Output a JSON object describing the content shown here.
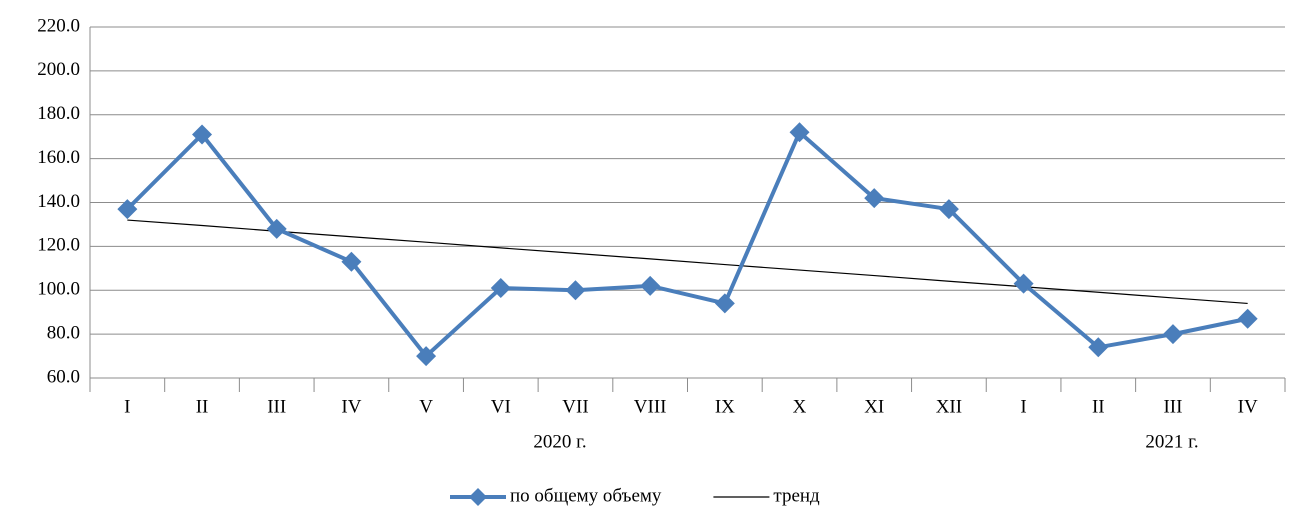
{
  "chart_data": {
    "type": "line",
    "categories": [
      "I",
      "II",
      "III",
      "IV",
      "V",
      "VI",
      "VII",
      "VIII",
      "IX",
      "X",
      "XI",
      "XII",
      "I",
      "II",
      "III",
      "IV"
    ],
    "x_groups": [
      "2020 г.",
      "2021 г."
    ],
    "series": [
      {
        "name": "по общему объему",
        "color": "#4a7ebb",
        "marker": "diamond",
        "values": [
          137,
          171,
          128,
          113,
          70,
          101,
          100,
          102,
          94,
          172,
          142,
          137,
          103,
          74,
          80,
          87
        ]
      },
      {
        "name": "тренд",
        "color": "#000000",
        "marker": "none",
        "values": [
          132,
          129.5,
          126.9,
          124.4,
          121.9,
          119.3,
          116.8,
          114.3,
          111.7,
          109.2,
          106.7,
          104.1,
          101.6,
          99.1,
          96.5,
          94
        ]
      }
    ],
    "ylim": [
      60,
      220
    ],
    "yticks": [
      {
        "value": 60,
        "label": "60.0"
      },
      {
        "value": 80,
        "label": "80.0"
      },
      {
        "value": 100,
        "label": "100.0"
      },
      {
        "value": 120,
        "label": "120.0"
      },
      {
        "value": 140,
        "label": "140.0"
      },
      {
        "value": 160,
        "label": "160.0"
      },
      {
        "value": 180,
        "label": "180.0"
      },
      {
        "value": 200,
        "label": "200.0"
      },
      {
        "value": 220,
        "label": "220.0"
      }
    ],
    "grid": true,
    "legend": "bottom"
  }
}
